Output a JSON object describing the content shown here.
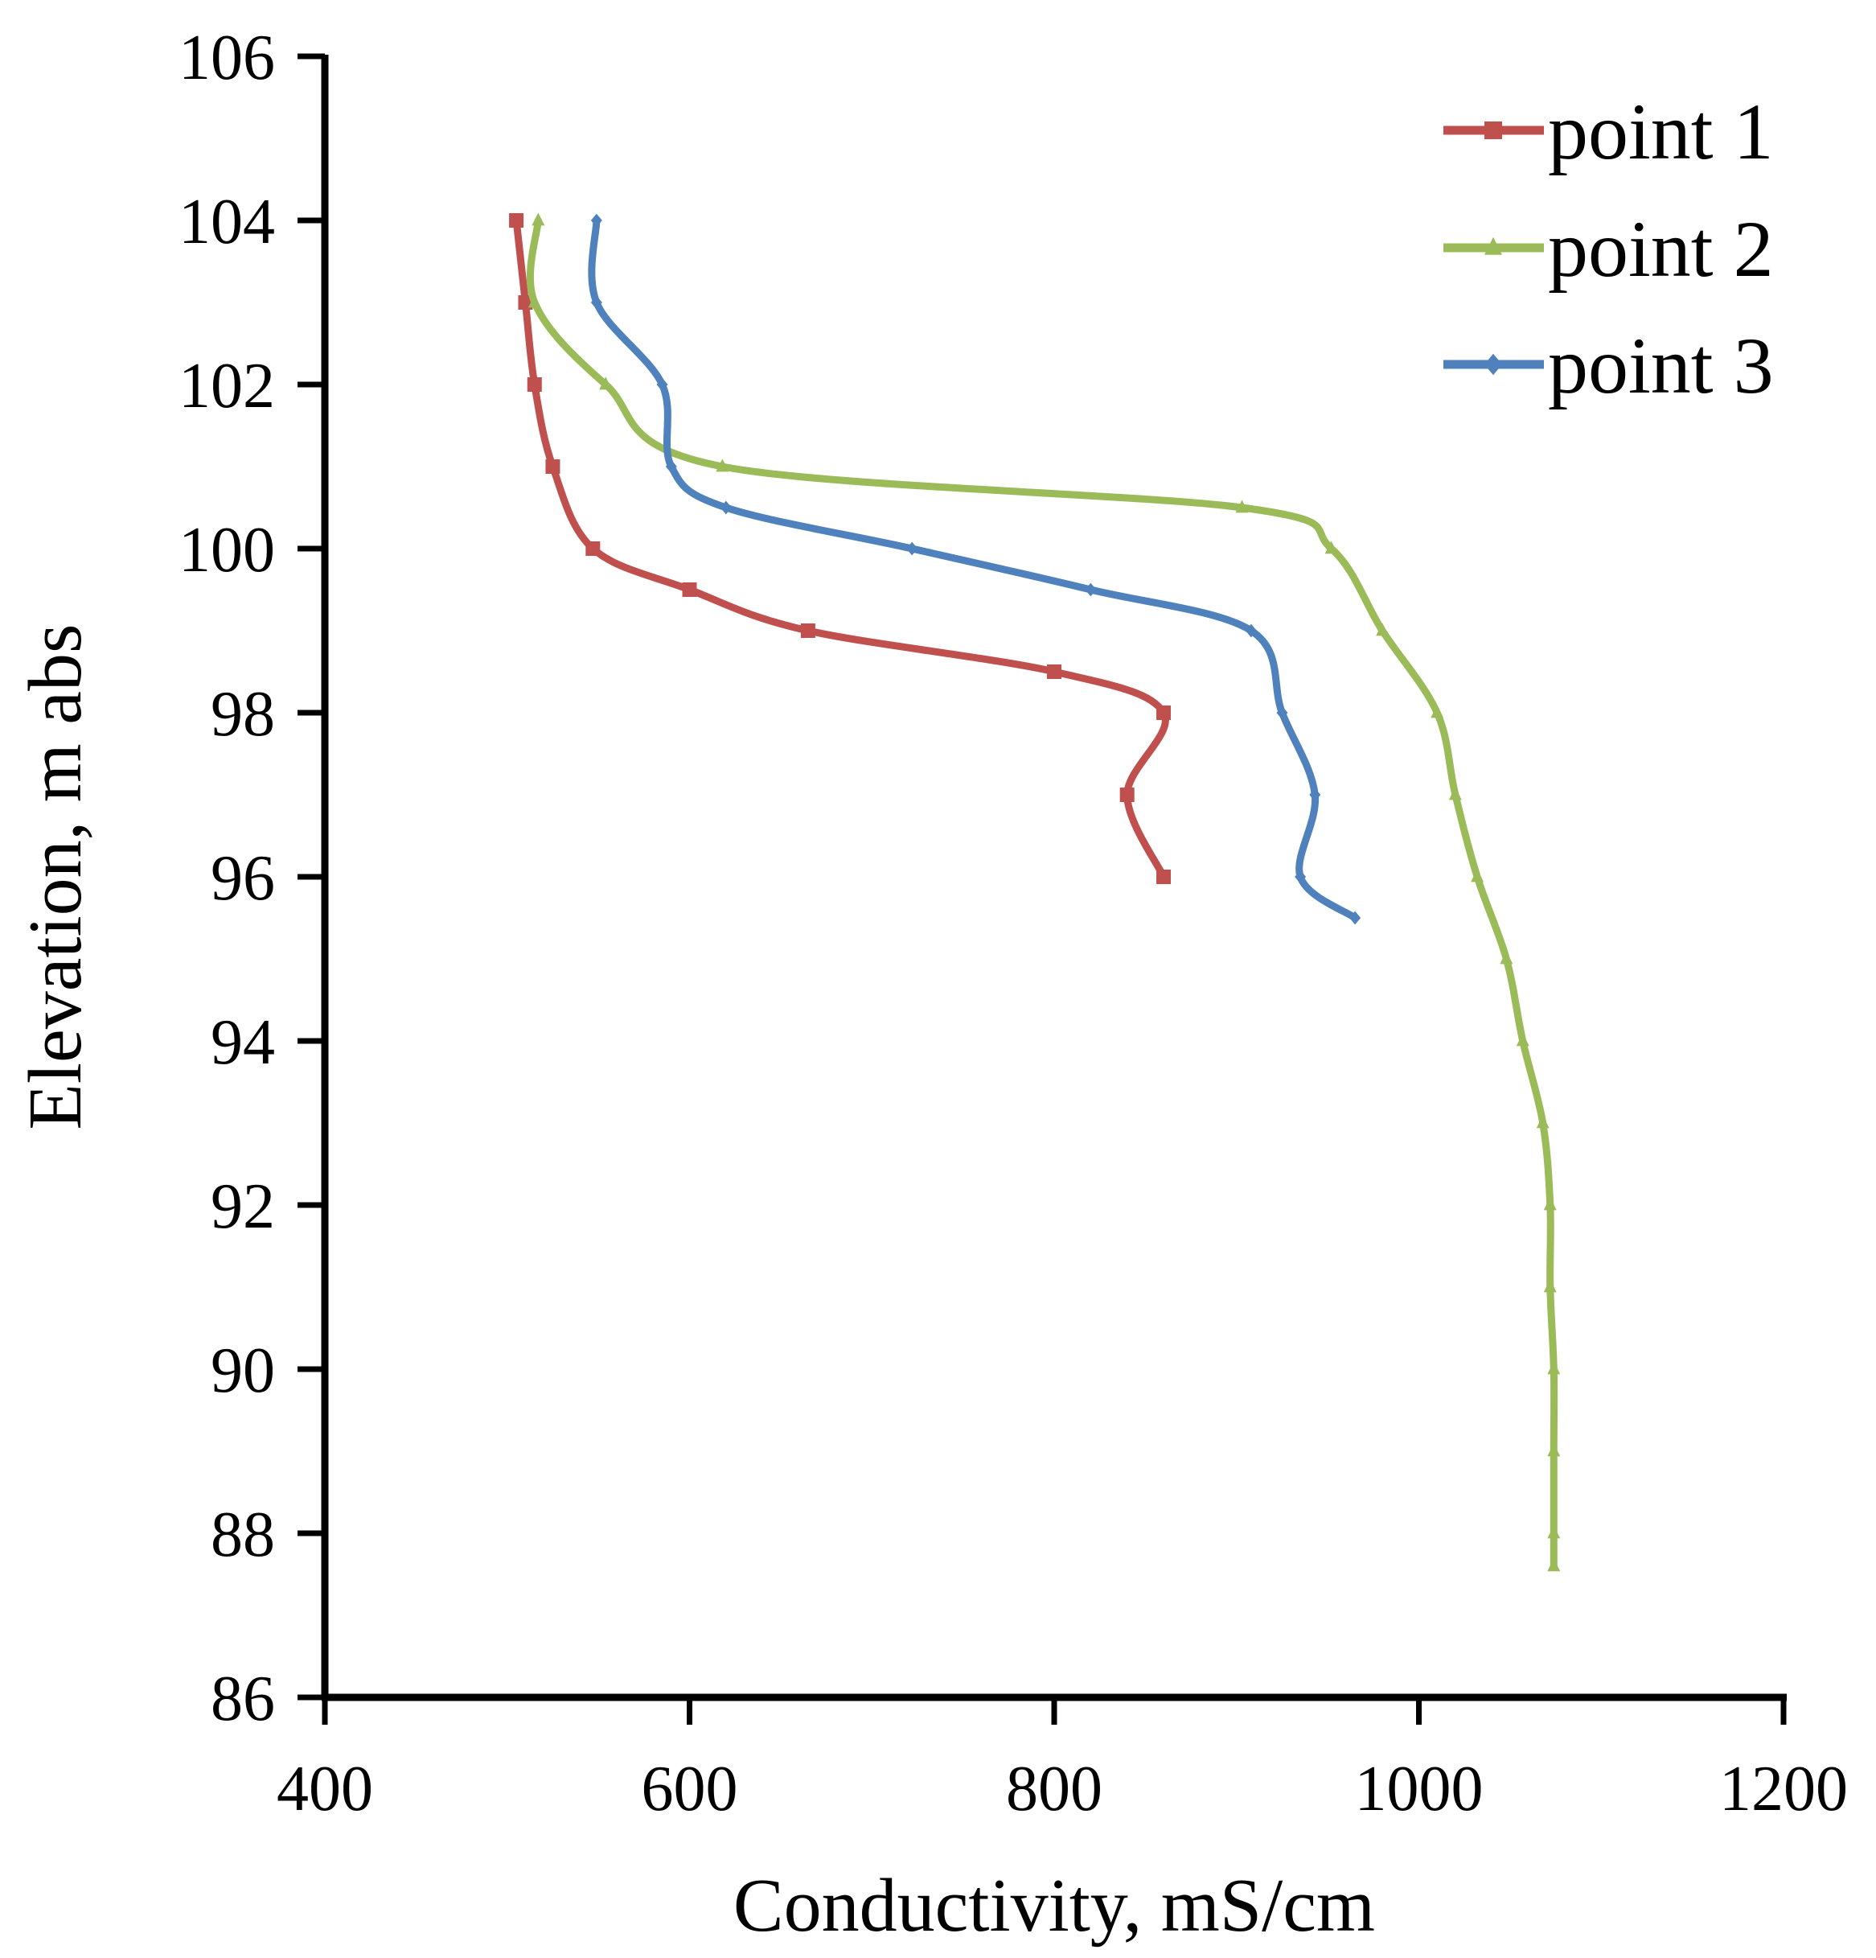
{
  "chart_data": {
    "type": "line",
    "title": "",
    "xlabel": "Conductivity, mS/cm",
    "ylabel": "Elevation, m abs",
    "xlim": [
      400,
      1200
    ],
    "ylim": [
      86,
      106
    ],
    "xticks": [
      400,
      600,
      800,
      1000,
      1200
    ],
    "yticks": [
      86,
      88,
      90,
      92,
      94,
      96,
      98,
      100,
      102,
      104,
      106
    ],
    "x_tick_labels": [
      "400",
      "600",
      "800",
      "1000",
      "1200"
    ],
    "y_tick_labels": [
      "86",
      "88",
      "90",
      "92",
      "94",
      "96",
      "98",
      "100",
      "102",
      "104",
      "106"
    ],
    "grid": false,
    "legend_position": "top-right",
    "series": [
      {
        "name": "point 1",
        "color": "#c0504d",
        "marker": "square",
        "points": [
          [
            505,
            104
          ],
          [
            510,
            103
          ],
          [
            515,
            102
          ],
          [
            525,
            101
          ],
          [
            547,
            100
          ],
          [
            600,
            99.5
          ],
          [
            665,
            99
          ],
          [
            800,
            98.5
          ],
          [
            860,
            98
          ],
          [
            840,
            97
          ],
          [
            860,
            96
          ]
        ]
      },
      {
        "name": "point 2",
        "color": "#9bbb59",
        "marker": "triangle",
        "points": [
          [
            517,
            104
          ],
          [
            515,
            103
          ],
          [
            554,
            102
          ],
          [
            618,
            101
          ],
          [
            903,
            100.5
          ],
          [
            952,
            100
          ],
          [
            980,
            99
          ],
          [
            1010,
            98
          ],
          [
            1020,
            97
          ],
          [
            1032,
            96
          ],
          [
            1048,
            95
          ],
          [
            1057,
            94
          ],
          [
            1068,
            93
          ],
          [
            1072,
            92
          ],
          [
            1072,
            91
          ],
          [
            1074,
            90
          ],
          [
            1074,
            89
          ],
          [
            1074,
            88
          ],
          [
            1074,
            87.6
          ]
        ]
      },
      {
        "name": "point 3",
        "color": "#4f81bd",
        "marker": "diamond",
        "points": [
          [
            549,
            104
          ],
          [
            549,
            103
          ],
          [
            585,
            102
          ],
          [
            590,
            101
          ],
          [
            620,
            100.5
          ],
          [
            722,
            100
          ],
          [
            820,
            99.5
          ],
          [
            908,
            99
          ],
          [
            925,
            98
          ],
          [
            943,
            97
          ],
          [
            935,
            96
          ],
          [
            965,
            95.5
          ]
        ]
      }
    ]
  }
}
